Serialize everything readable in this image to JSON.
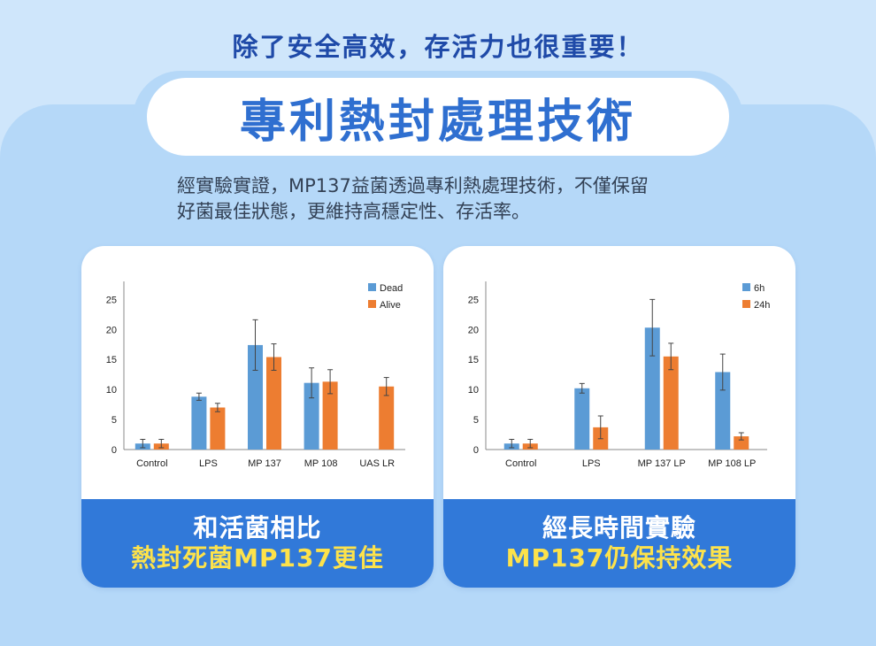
{
  "header": {
    "top_title": "除了安全高效，存活力也很重要！",
    "pill_title": "專利熱封處理技術",
    "description_line1": "經實驗實證，MP137益菌透過專利熱處理技術，不僅保留",
    "description_line2": "好菌最佳狀態，更維持高穩定性、存活率。"
  },
  "cards": [
    {
      "caption_line1": "和活菌相比",
      "caption_line2": "熱封死菌MP137更佳"
    },
    {
      "caption_line1": "經長時間實驗",
      "caption_line2": "MP137仍保持效果"
    }
  ],
  "colors": {
    "series_blue": "#5b9bd5",
    "series_orange": "#ed7d31",
    "card_footer": "#3179d9",
    "caption_yellow": "#fde24b",
    "title_blue": "#2f6fd0"
  },
  "chart_data": [
    {
      "type": "bar",
      "categories": [
        "Control",
        "LPS",
        "MP 137",
        "MP 108",
        "UAS LR"
      ],
      "series": [
        {
          "name": "Dead",
          "values": [
            1.0,
            8.8,
            17.4,
            11.1,
            null
          ],
          "errors": [
            0.7,
            0.6,
            4.2,
            2.5,
            null
          ]
        },
        {
          "name": "Alive",
          "values": [
            1.0,
            7.0,
            15.4,
            11.3,
            10.5
          ],
          "errors": [
            0.7,
            0.7,
            2.2,
            2.0,
            1.5
          ]
        }
      ],
      "yticks": [
        0,
        5,
        10,
        15,
        20,
        25
      ],
      "ylim": [
        0,
        28
      ],
      "legend_position": "top-right",
      "grid": false
    },
    {
      "type": "bar",
      "categories": [
        "Control",
        "LPS",
        "MP 137 LP",
        "MP 108 LP"
      ],
      "series": [
        {
          "name": "6h",
          "values": [
            1.0,
            10.2,
            20.3,
            12.9
          ],
          "errors": [
            0.7,
            0.8,
            4.7,
            3.0
          ]
        },
        {
          "name": "24h",
          "values": [
            1.0,
            3.7,
            15.5,
            2.2
          ],
          "errors": [
            0.7,
            1.9,
            2.2,
            0.6
          ]
        }
      ],
      "yticks": [
        0,
        5,
        10,
        15,
        20,
        25
      ],
      "ylim": [
        0,
        28
      ],
      "legend_position": "top-right",
      "grid": false
    }
  ]
}
